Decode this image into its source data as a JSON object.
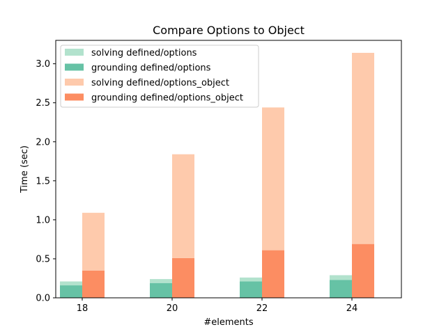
{
  "chart_data": {
    "type": "bar",
    "title": "Compare Options to Object",
    "xlabel": "#elements",
    "ylabel": "Time (sec)",
    "categories": [
      "18",
      "20",
      "22",
      "24"
    ],
    "ylim": [
      0,
      3.3
    ],
    "yticks": [
      "0.0",
      "0.5",
      "1.0",
      "1.5",
      "2.0",
      "2.5",
      "3.0"
    ],
    "grid": false,
    "legend_position": "top-left",
    "stacked_groups": [
      {
        "group": "defined/options",
        "segments": [
          {
            "name": "grounding defined/options",
            "color": "#66c2a5",
            "values": [
              0.16,
              0.19,
              0.21,
              0.23
            ]
          },
          {
            "name": "solving defined/options",
            "color": "#b2e2cd",
            "values": [
              0.05,
              0.05,
              0.05,
              0.06
            ]
          }
        ]
      },
      {
        "group": "defined/options_object",
        "segments": [
          {
            "name": "grounding defined/options_object",
            "color": "#fc8d62",
            "values": [
              0.35,
              0.51,
              0.61,
              0.69
            ]
          },
          {
            "name": "solving defined/options_object",
            "color": "#fecaac",
            "values": [
              0.74,
              1.33,
              1.83,
              2.45
            ]
          }
        ]
      }
    ],
    "legend": [
      {
        "label": "solving defined/options",
        "color": "#b2e2cd"
      },
      {
        "label": "grounding defined/options",
        "color": "#66c2a5"
      },
      {
        "label": "solving defined/options_object",
        "color": "#fecaac"
      },
      {
        "label": "grounding defined/options_object",
        "color": "#fc8d62"
      }
    ]
  }
}
